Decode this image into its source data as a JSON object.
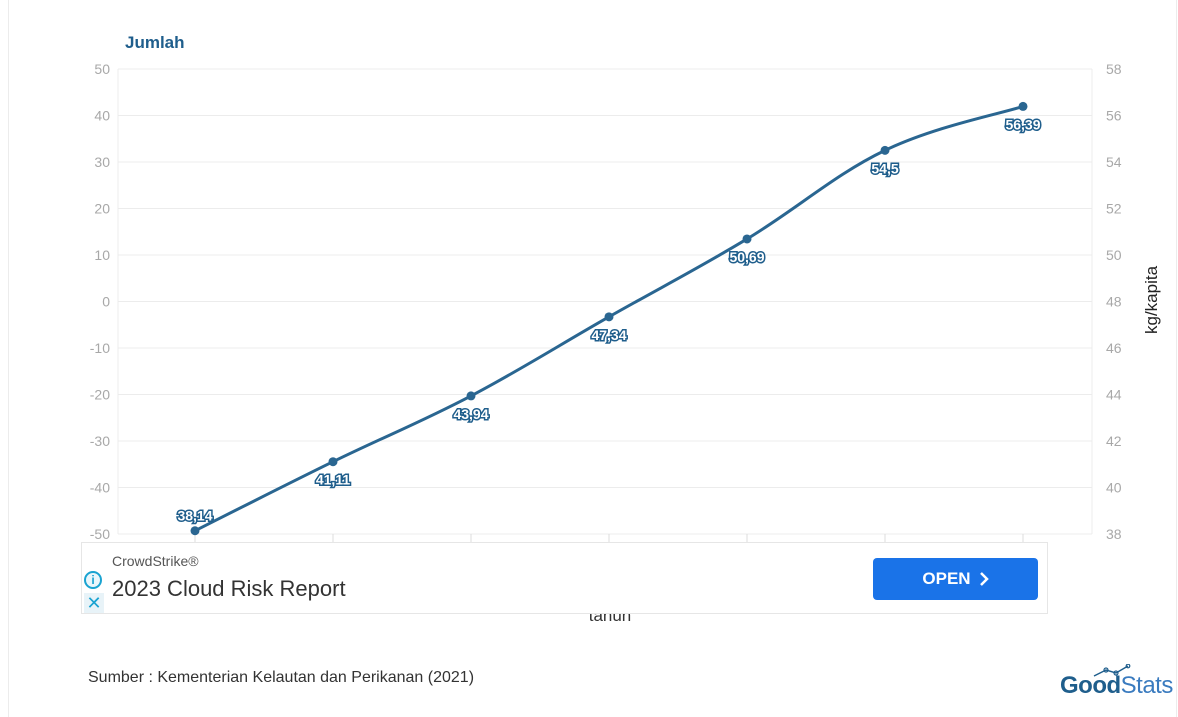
{
  "chart_data": {
    "type": "line",
    "title": "",
    "left_axis_title": "Jumlah",
    "xlabel": "tahun",
    "ylabel_right": "kg/kapita",
    "y_left": {
      "range": [
        -50,
        50
      ],
      "ticks": [
        "50",
        "40",
        "30",
        "20",
        "10",
        "0",
        "-10",
        "-20",
        "-30",
        "-40",
        "-50"
      ]
    },
    "y_right": {
      "range": [
        38,
        58
      ],
      "ticks": [
        "58",
        "56",
        "54",
        "52",
        "50",
        "48",
        "46",
        "44",
        "42",
        "40",
        "38"
      ]
    },
    "grid": true,
    "series": [
      {
        "axis": "right",
        "color": "#2a6691",
        "values": [
          38.14,
          41.11,
          43.94,
          47.34,
          50.69,
          54.5,
          56.39
        ],
        "labels": [
          "38,14",
          "41,11",
          "43,94",
          "47,34",
          "50,69",
          "54,5",
          "56,39"
        ]
      }
    ]
  },
  "ad": {
    "sponsor": "CrowdStrike®",
    "title": "2023 Cloud Risk Report",
    "button": "OPEN",
    "info_icon": "info-icon",
    "close_icon": "close-icon"
  },
  "source": "Sumber : Kementerian Kelautan dan Perikanan (2021)",
  "logo": {
    "part1": "Good",
    "part2": "Stats"
  }
}
